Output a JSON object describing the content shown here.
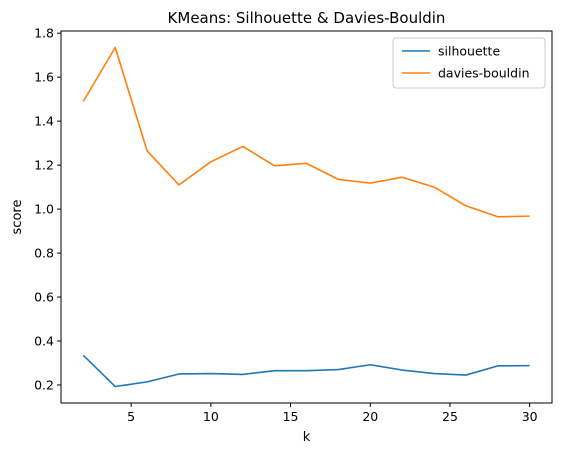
{
  "chart_data": {
    "type": "line",
    "title": "KMeans: Silhouette & Davies-Bouldin",
    "xlabel": "k",
    "ylabel": "score",
    "x": [
      2,
      4,
      6,
      8,
      10,
      12,
      14,
      16,
      18,
      20,
      22,
      24,
      26,
      28,
      30
    ],
    "xlim": [
      0.6,
      31.4
    ],
    "ylim": [
      0.118,
      1.81
    ],
    "xticks": [
      5,
      10,
      15,
      20,
      25,
      30
    ],
    "yticks": [
      0.2,
      0.4,
      0.6,
      0.8,
      1.0,
      1.2,
      1.4,
      1.6,
      1.8
    ],
    "ytick_labels": [
      "0.2",
      "0.4",
      "0.6",
      "0.8",
      "1.0",
      "1.2",
      "1.4",
      "1.6",
      "1.8"
    ],
    "grid": false,
    "legend_position": "top-right",
    "series": [
      {
        "name": "silhouette",
        "color": "#1f77b4",
        "values": [
          0.335,
          0.193,
          0.214,
          0.25,
          0.252,
          0.248,
          0.265,
          0.265,
          0.27,
          0.292,
          0.268,
          0.252,
          0.245,
          0.287,
          0.288
        ]
      },
      {
        "name": "davies-bouldin",
        "color": "#ff7f0e",
        "values": [
          1.49,
          1.735,
          1.265,
          1.11,
          1.215,
          1.285,
          1.197,
          1.208,
          1.135,
          1.118,
          1.145,
          1.1,
          1.015,
          0.965,
          0.968
        ]
      }
    ]
  }
}
